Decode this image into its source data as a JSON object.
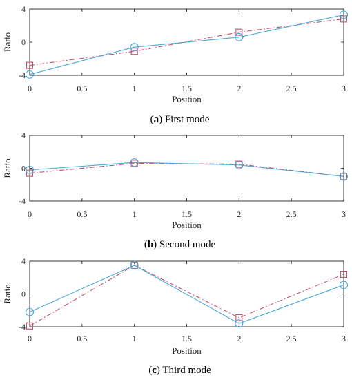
{
  "chart_data": [
    {
      "type": "line",
      "caption": {
        "letter": "a",
        "text": " First mode"
      },
      "xlabel": "Position",
      "ylabel": "Ratio",
      "xlim": [
        0,
        3
      ],
      "ylim": [
        -4,
        4
      ],
      "xticks": [
        "0",
        "0.5",
        "1",
        "1.5",
        "2",
        "2.5",
        "3"
      ],
      "yticks": [
        "-4",
        "0",
        "4"
      ],
      "x": [
        0,
        1,
        2,
        3
      ],
      "series": [
        {
          "marker": "circle",
          "style": "solid",
          "color": "#4aa8dc",
          "values": [
            -3.9,
            -0.6,
            0.6,
            3.3
          ]
        },
        {
          "marker": "square",
          "style": "dashdot",
          "color": "#c0506a",
          "values": [
            -2.8,
            -1.1,
            1.2,
            2.8
          ]
        }
      ]
    },
    {
      "type": "line",
      "caption": {
        "letter": "b",
        "text": " Second mode"
      },
      "xlabel": "Position",
      "ylabel": "Ratio",
      "xlim": [
        0,
        3
      ],
      "ylim": [
        -4,
        4
      ],
      "xticks": [
        "0",
        "0.5",
        "1",
        "1.5",
        "2",
        "2.5",
        "3"
      ],
      "yticks": [
        "-4",
        "0",
        "4"
      ],
      "x": [
        0,
        1,
        2,
        3
      ],
      "series": [
        {
          "marker": "circle",
          "style": "solid",
          "color": "#4aa8dc",
          "values": [
            -0.2,
            0.7,
            0.4,
            -1.0
          ]
        },
        {
          "marker": "square",
          "style": "dashdot",
          "color": "#c0506a",
          "values": [
            -0.6,
            0.6,
            0.5,
            -1.0
          ]
        }
      ]
    },
    {
      "type": "line",
      "caption": {
        "letter": "c",
        "text": " Third mode"
      },
      "xlabel": "Position",
      "ylabel": "Ratio",
      "xlim": [
        0,
        3
      ],
      "ylim": [
        -4,
        4
      ],
      "xticks": [
        "0",
        "0.5",
        "1",
        "1.5",
        "2",
        "2.5",
        "3"
      ],
      "yticks": [
        "-4",
        "0",
        "4"
      ],
      "x": [
        0,
        1,
        2,
        3
      ],
      "series": [
        {
          "marker": "circle",
          "style": "solid",
          "color": "#4aa8dc",
          "values": [
            -2.2,
            3.5,
            -3.6,
            1.1
          ]
        },
        {
          "marker": "square",
          "style": "dashdot",
          "color": "#c0506a",
          "values": [
            -3.9,
            3.5,
            -2.9,
            2.4
          ]
        }
      ]
    }
  ]
}
